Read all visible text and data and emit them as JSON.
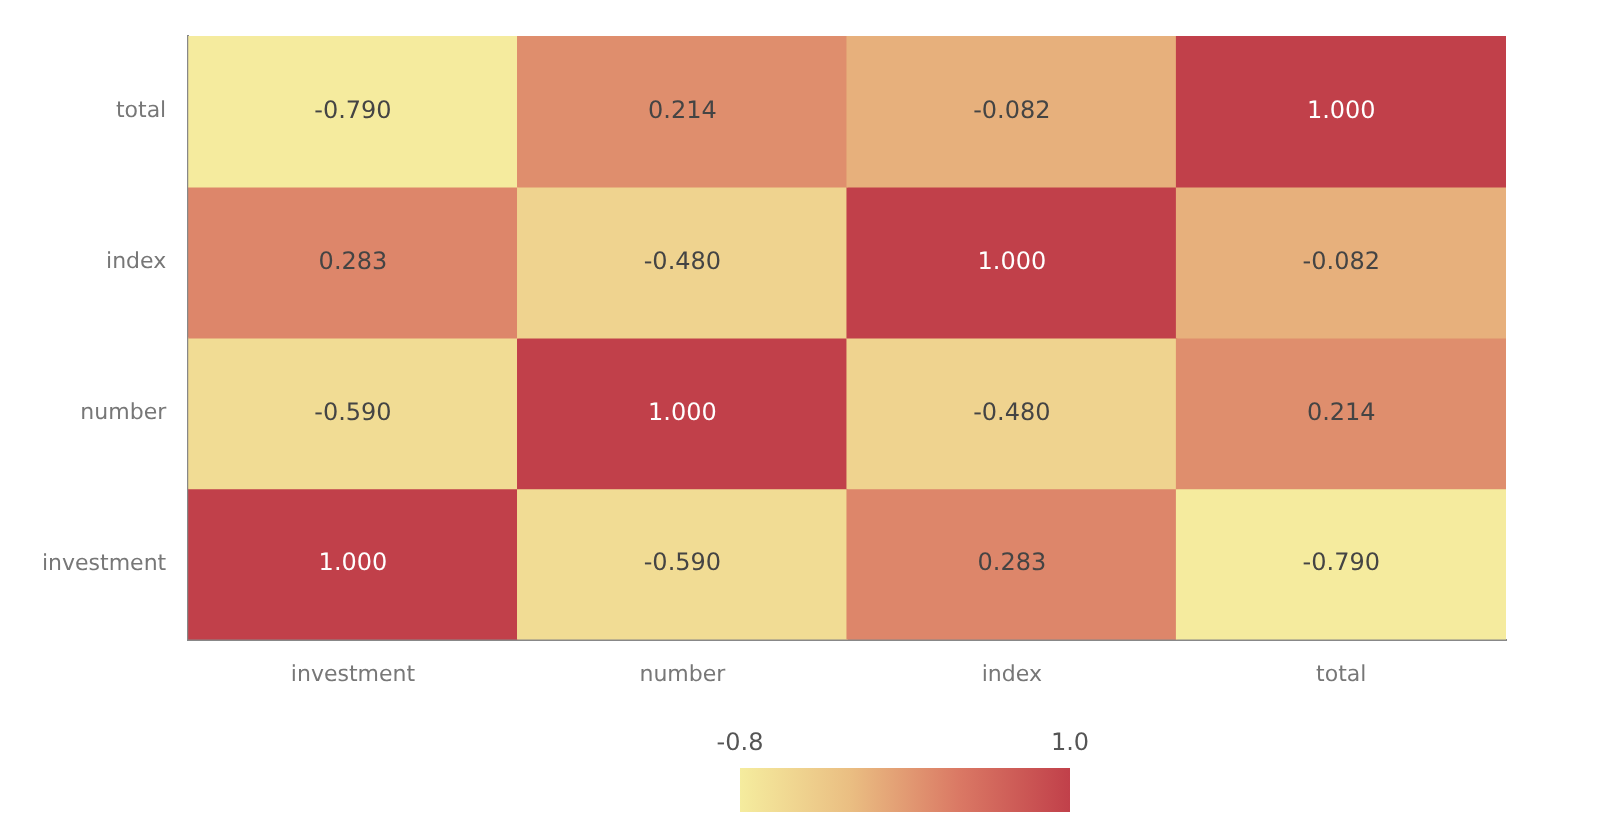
{
  "chart_data": {
    "type": "heatmap",
    "categories": [
      "investment",
      "number",
      "index",
      "total"
    ],
    "y_categories": [
      "total",
      "index",
      "number",
      "investment"
    ],
    "cells": [
      [
        -0.79,
        0.214,
        -0.082,
        1.0
      ],
      [
        0.283,
        -0.48,
        1.0,
        -0.082
      ],
      [
        -0.59,
        1.0,
        -0.48,
        0.214
      ],
      [
        1.0,
        -0.59,
        0.283,
        -0.79
      ]
    ],
    "cell_labels": [
      [
        "-0.790",
        "0.214",
        "-0.082",
        "1.000"
      ],
      [
        "0.283",
        "-0.480",
        "1.000",
        "-0.082"
      ],
      [
        "-0.590",
        "1.000",
        "-0.480",
        "0.214"
      ],
      [
        "1.000",
        "-0.590",
        "0.283",
        "-0.790"
      ]
    ],
    "clim": [
      -0.8,
      1.0
    ],
    "cticks": [
      -0.8,
      {
        "value": 1.0,
        "label": "1.0"
      }
    ]
  }
}
